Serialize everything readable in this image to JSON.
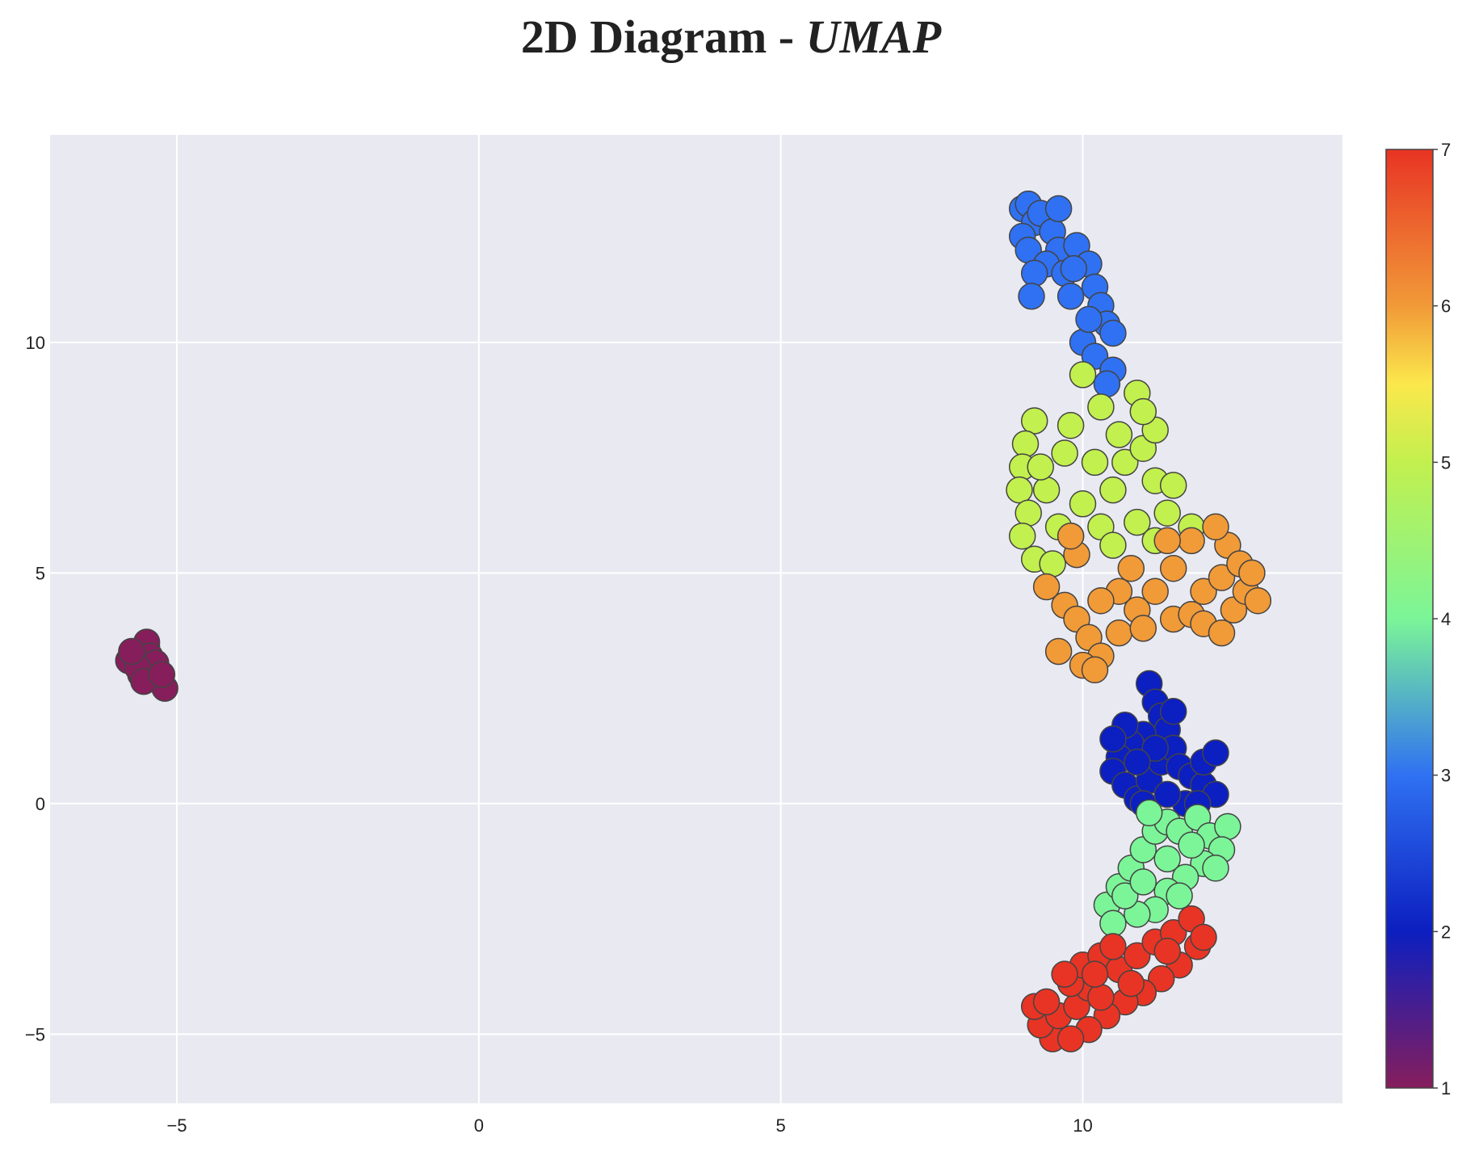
{
  "chart_data": {
    "type": "scatter",
    "title": "2D Diagram - ",
    "title_italic": "UMAP",
    "xlabel": "",
    "ylabel": "",
    "xlim": [
      -7.1,
      14.3
    ],
    "ylim": [
      -6.5,
      14.5
    ],
    "x_ticks": [
      -5,
      0,
      5,
      10
    ],
    "x_tick_labels": [
      "−5",
      "0",
      "5",
      "10"
    ],
    "y_ticks": [
      -5,
      0,
      5,
      10
    ],
    "y_tick_labels": [
      "−5",
      "0",
      "5",
      "10"
    ],
    "grid": true,
    "plot_background": "#e9eaf1",
    "gridline_color": "#ffffff",
    "marker_edge_color": "#444444",
    "colorbar": {
      "min": 1,
      "max": 7,
      "ticks": [
        1,
        2,
        3,
        4,
        5,
        6,
        7
      ],
      "tick_labels": [
        "1",
        "2",
        "3",
        "4",
        "5",
        "6",
        "7"
      ],
      "colorscale": [
        [
          0.0,
          "#861e5c"
        ],
        [
          0.167,
          "#0c1fc0"
        ],
        [
          0.333,
          "#2f71f2"
        ],
        [
          0.5,
          "#7bf598"
        ],
        [
          0.667,
          "#c2f04e"
        ],
        [
          0.75,
          "#fbe84c"
        ],
        [
          0.833,
          "#f19a38"
        ],
        [
          1.0,
          "#e83424"
        ]
      ]
    },
    "series": [
      {
        "value": 1,
        "color": "#861e5c",
        "points": [
          [
            -5.7,
            3.2
          ],
          [
            -5.6,
            3.0
          ],
          [
            -5.5,
            3.4
          ],
          [
            -5.4,
            2.9
          ],
          [
            -5.6,
            2.8
          ],
          [
            -5.3,
            2.7
          ],
          [
            -5.2,
            2.5
          ],
          [
            -5.5,
            3.5
          ],
          [
            -5.8,
            3.1
          ],
          [
            -5.45,
            3.2
          ],
          [
            -5.35,
            3.05
          ],
          [
            -5.65,
            2.95
          ],
          [
            -5.55,
            2.65
          ],
          [
            -5.25,
            2.8
          ],
          [
            -5.75,
            3.3
          ]
        ]
      },
      {
        "value": 2,
        "color": "#0c1fc0",
        "points": [
          [
            11.1,
            2.6
          ],
          [
            11.2,
            2.2
          ],
          [
            11.3,
            1.9
          ],
          [
            11.4,
            1.6
          ],
          [
            11.0,
            1.5
          ],
          [
            10.8,
            1.3
          ],
          [
            10.6,
            1.0
          ],
          [
            10.5,
            0.7
          ],
          [
            10.7,
            0.4
          ],
          [
            10.9,
            0.1
          ],
          [
            11.1,
            0.5
          ],
          [
            11.3,
            0.9
          ],
          [
            11.5,
            1.2
          ],
          [
            11.6,
            0.8
          ],
          [
            11.8,
            0.6
          ],
          [
            12.0,
            0.4
          ],
          [
            12.2,
            0.2
          ],
          [
            12.0,
            0.9
          ],
          [
            12.2,
            1.1
          ],
          [
            11.7,
            0.0
          ],
          [
            11.4,
            0.2
          ],
          [
            11.2,
            1.2
          ],
          [
            10.9,
            0.9
          ],
          [
            10.7,
            1.7
          ],
          [
            10.5,
            1.4
          ],
          [
            11.5,
            2.0
          ],
          [
            11.0,
            0.0
          ],
          [
            11.9,
            0.0
          ]
        ]
      },
      {
        "value": 3,
        "color": "#2f71f2",
        "points": [
          [
            9.0,
            12.9
          ],
          [
            9.1,
            13.0
          ],
          [
            9.2,
            12.6
          ],
          [
            9.0,
            12.3
          ],
          [
            9.1,
            12.0
          ],
          [
            9.3,
            12.8
          ],
          [
            9.5,
            12.4
          ],
          [
            9.6,
            12.0
          ],
          [
            9.4,
            11.7
          ],
          [
            9.2,
            11.5
          ],
          [
            9.7,
            11.5
          ],
          [
            9.9,
            12.1
          ],
          [
            10.1,
            11.7
          ],
          [
            10.2,
            11.2
          ],
          [
            10.3,
            10.8
          ],
          [
            10.4,
            10.4
          ],
          [
            10.0,
            10.0
          ],
          [
            10.2,
            9.7
          ],
          [
            10.5,
            9.4
          ],
          [
            10.4,
            9.1
          ],
          [
            9.8,
            11.0
          ],
          [
            10.1,
            10.5
          ],
          [
            9.15,
            11.0
          ],
          [
            9.6,
            12.9
          ],
          [
            10.5,
            10.2
          ],
          [
            9.85,
            11.6
          ]
        ]
      },
      {
        "value": 5,
        "color": "#c2f04e",
        "points": [
          [
            10.0,
            9.3
          ],
          [
            10.9,
            8.9
          ],
          [
            10.3,
            8.6
          ],
          [
            9.8,
            8.2
          ],
          [
            9.2,
            8.3
          ],
          [
            9.05,
            7.8
          ],
          [
            9.0,
            7.3
          ],
          [
            8.95,
            6.8
          ],
          [
            9.1,
            6.3
          ],
          [
            9.0,
            5.8
          ],
          [
            9.2,
            5.3
          ],
          [
            9.5,
            5.2
          ],
          [
            9.8,
            5.8
          ],
          [
            10.0,
            6.5
          ],
          [
            10.5,
            6.8
          ],
          [
            10.7,
            7.4
          ],
          [
            11.0,
            7.7
          ],
          [
            11.2,
            7.0
          ],
          [
            11.5,
            6.9
          ],
          [
            11.4,
            6.3
          ],
          [
            11.8,
            6.0
          ],
          [
            11.2,
            8.1
          ],
          [
            10.6,
            8.0
          ],
          [
            10.2,
            7.4
          ],
          [
            9.7,
            7.6
          ],
          [
            9.4,
            6.8
          ],
          [
            9.6,
            6.0
          ],
          [
            10.3,
            6.0
          ],
          [
            10.9,
            6.1
          ],
          [
            11.2,
            5.7
          ],
          [
            11.0,
            8.5
          ],
          [
            10.5,
            5.6
          ],
          [
            9.3,
            7.3
          ]
        ]
      },
      {
        "value": 6,
        "color": "#f19a38",
        "points": [
          [
            9.4,
            4.7
          ],
          [
            9.7,
            4.3
          ],
          [
            9.9,
            4.0
          ],
          [
            10.1,
            3.6
          ],
          [
            10.3,
            3.2
          ],
          [
            10.0,
            3.0
          ],
          [
            10.2,
            2.9
          ],
          [
            10.6,
            3.7
          ],
          [
            10.9,
            4.2
          ],
          [
            11.2,
            4.6
          ],
          [
            11.5,
            4.0
          ],
          [
            11.8,
            4.1
          ],
          [
            12.0,
            4.6
          ],
          [
            12.3,
            4.9
          ],
          [
            12.4,
            5.6
          ],
          [
            12.2,
            6.0
          ],
          [
            11.8,
            5.7
          ],
          [
            11.5,
            5.1
          ],
          [
            11.4,
            5.7
          ],
          [
            12.5,
            4.2
          ],
          [
            12.7,
            4.6
          ],
          [
            12.9,
            4.4
          ],
          [
            12.6,
            5.2
          ],
          [
            12.0,
            3.9
          ],
          [
            12.3,
            3.7
          ],
          [
            10.6,
            4.6
          ],
          [
            10.3,
            4.4
          ],
          [
            9.9,
            5.4
          ],
          [
            10.8,
            5.1
          ],
          [
            9.6,
            3.3
          ],
          [
            9.8,
            5.8
          ],
          [
            11.0,
            3.8
          ],
          [
            12.8,
            5.0
          ]
        ]
      },
      {
        "value": 4,
        "color": "#7bf598",
        "points": [
          [
            10.4,
            -2.2
          ],
          [
            10.6,
            -1.8
          ],
          [
            10.8,
            -1.4
          ],
          [
            11.0,
            -1.0
          ],
          [
            11.2,
            -0.6
          ],
          [
            11.4,
            -0.4
          ],
          [
            11.6,
            -0.6
          ],
          [
            11.9,
            -0.3
          ],
          [
            12.1,
            -0.7
          ],
          [
            12.4,
            -0.5
          ],
          [
            12.3,
            -1.0
          ],
          [
            12.0,
            -1.3
          ],
          [
            11.7,
            -1.6
          ],
          [
            11.4,
            -1.9
          ],
          [
            11.2,
            -2.3
          ],
          [
            10.9,
            -2.4
          ],
          [
            10.7,
            -2.0
          ],
          [
            11.0,
            -1.7
          ],
          [
            11.4,
            -1.2
          ],
          [
            11.8,
            -0.9
          ],
          [
            12.2,
            -1.4
          ],
          [
            10.5,
            -2.6
          ],
          [
            11.6,
            -2.0
          ],
          [
            11.1,
            -0.2
          ]
        ]
      },
      {
        "value": 7,
        "color": "#e83424",
        "points": [
          [
            9.5,
            -5.1
          ],
          [
            9.3,
            -4.8
          ],
          [
            9.2,
            -4.4
          ],
          [
            9.6,
            -4.6
          ],
          [
            9.9,
            -4.4
          ],
          [
            10.1,
            -4.0
          ],
          [
            9.8,
            -3.9
          ],
          [
            10.0,
            -3.5
          ],
          [
            10.3,
            -3.3
          ],
          [
            10.6,
            -3.6
          ],
          [
            10.9,
            -3.3
          ],
          [
            11.2,
            -3.0
          ],
          [
            11.5,
            -2.8
          ],
          [
            11.8,
            -2.5
          ],
          [
            11.9,
            -3.1
          ],
          [
            11.6,
            -3.5
          ],
          [
            11.3,
            -3.8
          ],
          [
            11.0,
            -4.1
          ],
          [
            10.7,
            -4.3
          ],
          [
            10.4,
            -4.6
          ],
          [
            10.1,
            -4.9
          ],
          [
            9.8,
            -5.1
          ],
          [
            10.3,
            -4.2
          ],
          [
            9.4,
            -4.3
          ],
          [
            10.8,
            -3.9
          ],
          [
            11.4,
            -3.2
          ],
          [
            12.0,
            -2.9
          ],
          [
            9.7,
            -3.7
          ],
          [
            10.5,
            -3.1
          ],
          [
            10.2,
            -3.7
          ]
        ]
      }
    ]
  }
}
